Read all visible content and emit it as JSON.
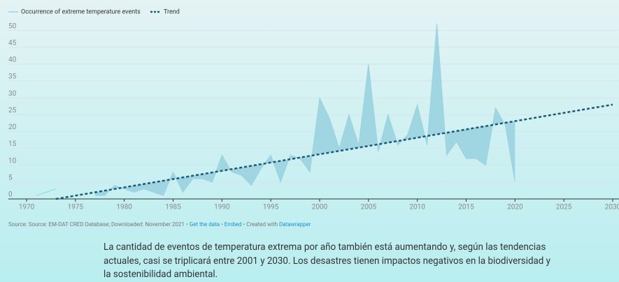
{
  "chart_data": {
    "type": "line",
    "series": [
      {
        "name": "Occurrence of extreme temperature events",
        "color": "#9dd3e0",
        "x": [
          1971,
          1972,
          1973,
          1974,
          1975,
          1976,
          1977,
          1978,
          1979,
          1980,
          1981,
          1982,
          1983,
          1984,
          1985,
          1986,
          1987,
          1988,
          1989,
          1990,
          1991,
          1992,
          1993,
          1994,
          1995,
          1996,
          1997,
          1998,
          1999,
          2000,
          2001,
          2002,
          2003,
          2004,
          2005,
          2006,
          2007,
          2008,
          2009,
          2010,
          2011,
          2012,
          2013,
          2014,
          2015,
          2016,
          2017,
          2018,
          2019,
          2020
        ],
        "values": [
          1,
          2,
          3,
          null,
          null,
          null,
          1,
          1,
          4,
          3,
          2,
          3,
          2,
          1,
          8,
          2,
          6,
          6,
          5,
          13,
          8,
          7,
          4,
          9,
          13,
          5,
          13,
          12,
          8,
          30,
          24,
          15,
          25,
          16,
          40,
          14,
          25,
          16,
          19,
          28,
          16,
          52,
          13,
          17,
          12,
          12,
          10,
          27,
          22,
          5
        ]
      },
      {
        "name": "Trend",
        "color": "#1d5a78",
        "x": [
          1973,
          2030
        ],
        "values": [
          0,
          28
        ]
      }
    ],
    "xlim": [
      1970,
      2030
    ],
    "xticks": [
      1970,
      1975,
      1980,
      1985,
      1990,
      1995,
      2000,
      2005,
      2010,
      2015,
      2020,
      2025,
      2030
    ],
    "ylim": [
      0,
      52
    ],
    "yticks": [
      0,
      5,
      10,
      15,
      20,
      25,
      30,
      35,
      40,
      45,
      50
    ],
    "grid": true,
    "source": "Source: Source: EM-DAT CRED Database; Downloaded: November 2021",
    "links": [
      "Get the data",
      "Embed"
    ],
    "credit": "Created with",
    "credit_link": "Datawrapper"
  },
  "caption": "La cantidad de eventos de temperatura extrema por año también está aumentando y, según las tendencias actuales, casi se triplicará entre 2001 y 2030. Los desastres tienen impactos negativos en la biodiversidad y la sostenibilidad ambiental."
}
